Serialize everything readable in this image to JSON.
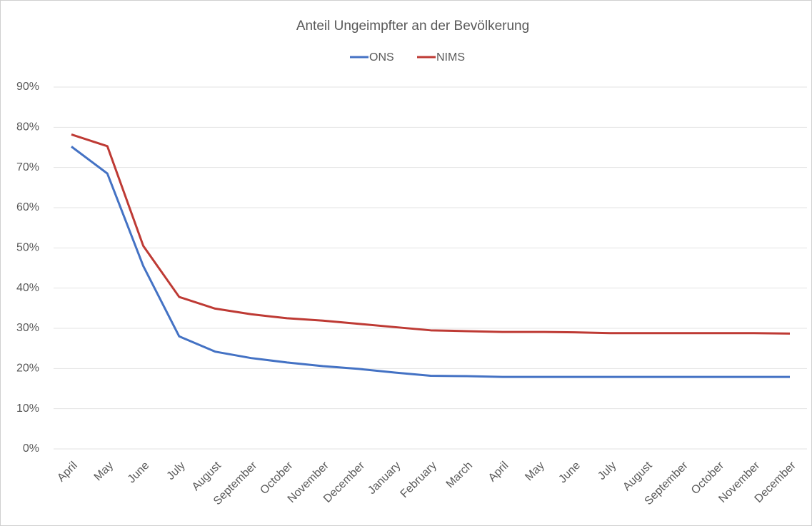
{
  "chart_data": {
    "type": "line",
    "title": "Anteil Ungeimpfter an der Bevölkerung",
    "categories": [
      "April",
      "May",
      "June",
      "July",
      "August",
      "September",
      "October",
      "November",
      "December",
      "January",
      "February",
      "March",
      "April",
      "May",
      "June",
      "July",
      "August",
      "September",
      "October",
      "November",
      "December"
    ],
    "series": [
      {
        "name": "ONS",
        "color": "#4472c4",
        "values": [
          75.2,
          68.5,
          45.5,
          28,
          24.2,
          22.6,
          21.5,
          20.6,
          19.9,
          19,
          18.2,
          18.1,
          17.9,
          17.9,
          17.9,
          17.9,
          17.9,
          17.9,
          17.9,
          17.9,
          17.9
        ]
      },
      {
        "name": "NIMS",
        "color": "#be3a34",
        "values": [
          78.2,
          75.3,
          50.5,
          37.8,
          34.9,
          33.5,
          32.5,
          31.9,
          31.1,
          30.3,
          29.5,
          29.3,
          29.1,
          29.1,
          29.0,
          28.8,
          28.8,
          28.8,
          28.8,
          28.8,
          28.7
        ]
      }
    ],
    "ylim": [
      0,
      90
    ],
    "yticks": [
      {
        "value": 0,
        "label": "0%"
      },
      {
        "value": 10,
        "label": "10%"
      },
      {
        "value": 20,
        "label": "20%"
      },
      {
        "value": 30,
        "label": "30%"
      },
      {
        "value": 40,
        "label": "40%"
      },
      {
        "value": 50,
        "label": "50%"
      },
      {
        "value": 60,
        "label": "60%"
      },
      {
        "value": 70,
        "label": "70%"
      },
      {
        "value": 80,
        "label": "80%"
      },
      {
        "value": 90,
        "label": "90%"
      }
    ],
    "grid": true,
    "legend": "top"
  }
}
